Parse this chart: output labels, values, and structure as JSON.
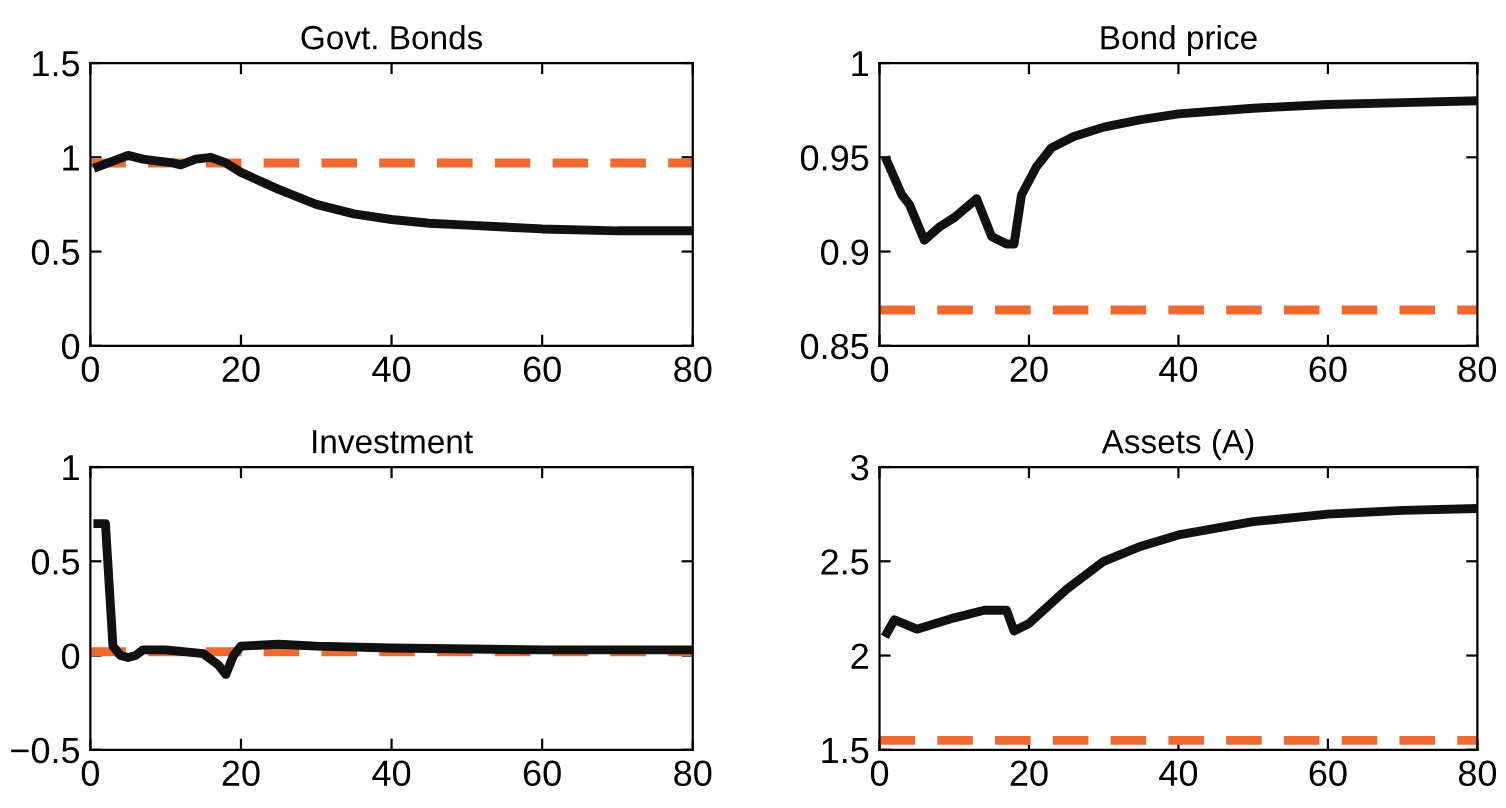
{
  "chart_data": [
    {
      "type": "line",
      "title": "Govt. Bonds",
      "x": [
        1,
        3,
        5,
        7,
        9,
        11,
        12,
        14,
        16,
        18,
        20,
        25,
        30,
        35,
        40,
        45,
        50,
        55,
        60,
        70,
        80
      ],
      "series": [
        {
          "color": "#111111",
          "values": [
            0.95,
            0.98,
            1.01,
            0.99,
            0.98,
            0.97,
            0.96,
            0.99,
            1.0,
            0.97,
            0.92,
            0.83,
            0.75,
            0.7,
            0.67,
            0.65,
            0.64,
            0.63,
            0.62,
            0.61,
            0.61
          ]
        }
      ],
      "ref_lines": [
        {
          "axis": "y",
          "value": 0.97,
          "color": "#f06a30",
          "line_style": "dashed"
        }
      ],
      "xlim": [
        0,
        80
      ],
      "xticks": [
        0,
        20,
        40,
        60,
        80
      ],
      "ylim": [
        0,
        1.5
      ],
      "yticks": [
        0,
        0.5,
        1,
        1.5
      ],
      "grid": false,
      "legend": false,
      "marker": "none",
      "line_style": "solid"
    },
    {
      "type": "line",
      "title": "Bond price",
      "x": [
        1,
        3,
        4,
        6,
        8,
        10,
        13,
        15,
        17,
        18,
        19,
        21,
        23,
        26,
        30,
        35,
        40,
        50,
        60,
        70,
        80
      ],
      "series": [
        {
          "color": "#111111",
          "values": [
            0.948,
            0.93,
            0.925,
            0.906,
            0.913,
            0.918,
            0.928,
            0.908,
            0.904,
            0.904,
            0.93,
            0.945,
            0.955,
            0.961,
            0.966,
            0.97,
            0.973,
            0.976,
            0.978,
            0.979,
            0.98
          ]
        }
      ],
      "ref_lines": [
        {
          "axis": "y",
          "value": 0.869,
          "color": "#f06a30",
          "line_style": "dashed"
        }
      ],
      "xlim": [
        0,
        80
      ],
      "xticks": [
        0,
        20,
        40,
        60,
        80
      ],
      "ylim": [
        0.85,
        1
      ],
      "yticks": [
        0.85,
        0.9,
        0.95,
        1
      ],
      "grid": false,
      "legend": false,
      "marker": "none",
      "line_style": "solid"
    },
    {
      "type": "line",
      "title": "Investment",
      "x": [
        1,
        2,
        3,
        4,
        5,
        6,
        7,
        10,
        15,
        17,
        18,
        19,
        20,
        25,
        30,
        40,
        60,
        80
      ],
      "series": [
        {
          "color": "#111111",
          "values": [
            0.7,
            0.7,
            0.05,
            0.0,
            -0.01,
            0.0,
            0.03,
            0.03,
            0.01,
            -0.05,
            -0.1,
            0.0,
            0.05,
            0.06,
            0.05,
            0.04,
            0.03,
            0.03
          ]
        }
      ],
      "ref_lines": [
        {
          "axis": "y",
          "value": 0.02,
          "color": "#f06a30",
          "line_style": "dashed"
        }
      ],
      "xlim": [
        0,
        80
      ],
      "xticks": [
        0,
        20,
        40,
        60,
        80
      ],
      "ylim": [
        -0.5,
        1
      ],
      "yticks": [
        {
          "value": -0.5,
          "label": "−0.5"
        },
        0,
        0.5,
        1
      ],
      "grid": false,
      "legend": false,
      "marker": "none",
      "line_style": "solid"
    },
    {
      "type": "line",
      "title": "Assets (A)",
      "x": [
        1,
        2,
        5,
        10,
        14,
        17,
        18,
        20,
        25,
        30,
        35,
        40,
        50,
        60,
        70,
        80
      ],
      "series": [
        {
          "color": "#111111",
          "values": [
            2.12,
            2.19,
            2.14,
            2.2,
            2.24,
            2.24,
            2.13,
            2.17,
            2.35,
            2.5,
            2.58,
            2.64,
            2.71,
            2.75,
            2.77,
            2.78
          ]
        }
      ],
      "ref_lines": [
        {
          "axis": "y",
          "value": 1.55,
          "color": "#f06a30",
          "line_style": "dashed"
        }
      ],
      "xlim": [
        0,
        80
      ],
      "xticks": [
        0,
        20,
        40,
        60,
        80
      ],
      "ylim": [
        1.5,
        3
      ],
      "yticks": [
        1.5,
        2,
        2.5,
        3
      ],
      "grid": false,
      "legend": false,
      "marker": "none",
      "line_style": "solid"
    }
  ]
}
